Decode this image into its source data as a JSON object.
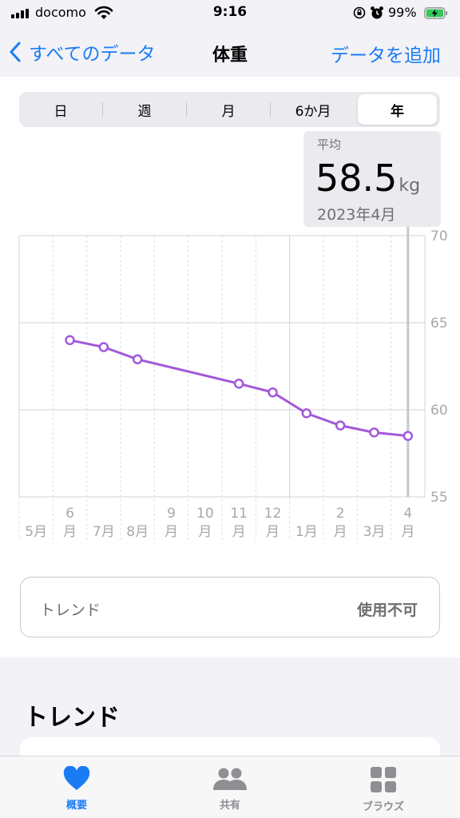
{
  "status_bar": {
    "carrier": "docomo",
    "time": "9:16",
    "battery_percent": "99%",
    "icons": [
      "signal-icon",
      "wifi-icon",
      "orientation-lock-icon",
      "alarm-icon",
      "battery-charging-icon"
    ]
  },
  "nav": {
    "back_label": "すべてのデータ",
    "title": "体重",
    "add_label": "データを追加"
  },
  "segmented": {
    "options": [
      "日",
      "週",
      "月",
      "6か月",
      "年"
    ],
    "selected": "年"
  },
  "callout": {
    "label": "平均",
    "value": "58.5",
    "unit": "kg",
    "date": "2023年4月"
  },
  "chart_data": {
    "type": "line",
    "y_ticks": [
      "70",
      "65",
      "60",
      "55"
    ],
    "ylim": [
      55,
      70
    ],
    "x_ticks": [
      {
        "top": "",
        "bottom": "5月"
      },
      {
        "top": "6",
        "bottom": "月"
      },
      {
        "top": "",
        "bottom": "7月"
      },
      {
        "top": "",
        "bottom": "8月"
      },
      {
        "top": "9",
        "bottom": "月"
      },
      {
        "top": "10",
        "bottom": "月"
      },
      {
        "top": "11",
        "bottom": "月"
      },
      {
        "top": "12",
        "bottom": "月"
      },
      {
        "top": "",
        "bottom": "1月"
      },
      {
        "top": "2",
        "bottom": "月"
      },
      {
        "top": "",
        "bottom": "3月"
      },
      {
        "top": "4",
        "bottom": "月"
      }
    ],
    "series": [
      {
        "points": [
          {
            "month_index": 1,
            "value": 64.0
          },
          {
            "month_index": 2,
            "value": 63.6
          },
          {
            "month_index": 3,
            "value": 62.9
          },
          {
            "month_index": 6,
            "value": 61.5
          },
          {
            "month_index": 7,
            "value": 61.0
          },
          {
            "month_index": 8,
            "value": 59.8
          },
          {
            "month_index": 9,
            "value": 59.1
          },
          {
            "month_index": 10,
            "value": 58.7
          },
          {
            "month_index": 11,
            "value": 58.5
          }
        ]
      }
    ],
    "selected_month_index": 11,
    "line_color": "#a259d9",
    "grid": true
  },
  "trend_card": {
    "label": "トレンド",
    "status": "使用不可"
  },
  "section": {
    "title": "トレンド"
  },
  "tab_bar": {
    "items": [
      {
        "label": "概要",
        "icon": "heart-icon",
        "active": true
      },
      {
        "label": "共有",
        "icon": "people-icon",
        "active": false
      },
      {
        "label": "ブラウズ",
        "icon": "grid-icon",
        "active": false
      }
    ]
  },
  "colors": {
    "accent": "#1a7cf5",
    "line": "#a259d9",
    "secondary_text": "#6e6e73"
  }
}
